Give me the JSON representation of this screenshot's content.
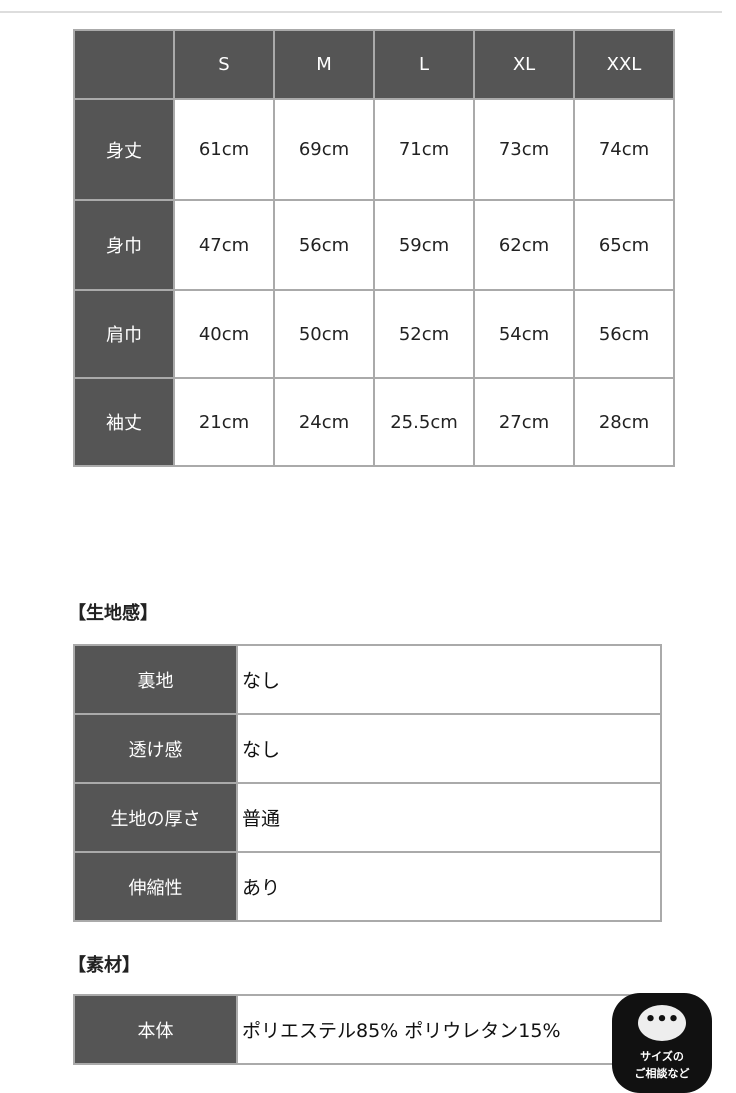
{
  "size_table": {
    "headers": [
      "",
      "S",
      "M",
      "L",
      "XL",
      "XXL"
    ],
    "rows": [
      {
        "label": "身丈",
        "values": [
          "61cm",
          "69cm",
          "71cm",
          "73cm",
          "74cm"
        ]
      },
      {
        "label": "身巾",
        "values": [
          "47cm",
          "56cm",
          "59cm",
          "62cm",
          "65cm"
        ]
      },
      {
        "label": "肩巾",
        "values": [
          "40cm",
          "50cm",
          "52cm",
          "54cm",
          "56cm"
        ]
      },
      {
        "label": "袖丈",
        "values": [
          "21cm",
          "24cm",
          "25.5cm",
          "27cm",
          "28cm"
        ]
      }
    ]
  },
  "fabric": {
    "heading": "【生地感】",
    "rows": [
      {
        "label": "裏地",
        "value": "なし"
      },
      {
        "label": "透け感",
        "value": "なし"
      },
      {
        "label": "生地の厚さ",
        "value": "普通"
      },
      {
        "label": "伸縮性",
        "value": "あり"
      }
    ]
  },
  "material": {
    "heading": "【素材】",
    "rows": [
      {
        "label": "本体",
        "value": "ポリエステル85% ポリウレタン15%"
      }
    ]
  },
  "chat_button": {
    "icon": "chat-bubble-icon",
    "dots": "•••",
    "line1": "サイズの",
    "line2": "ご相談など"
  }
}
